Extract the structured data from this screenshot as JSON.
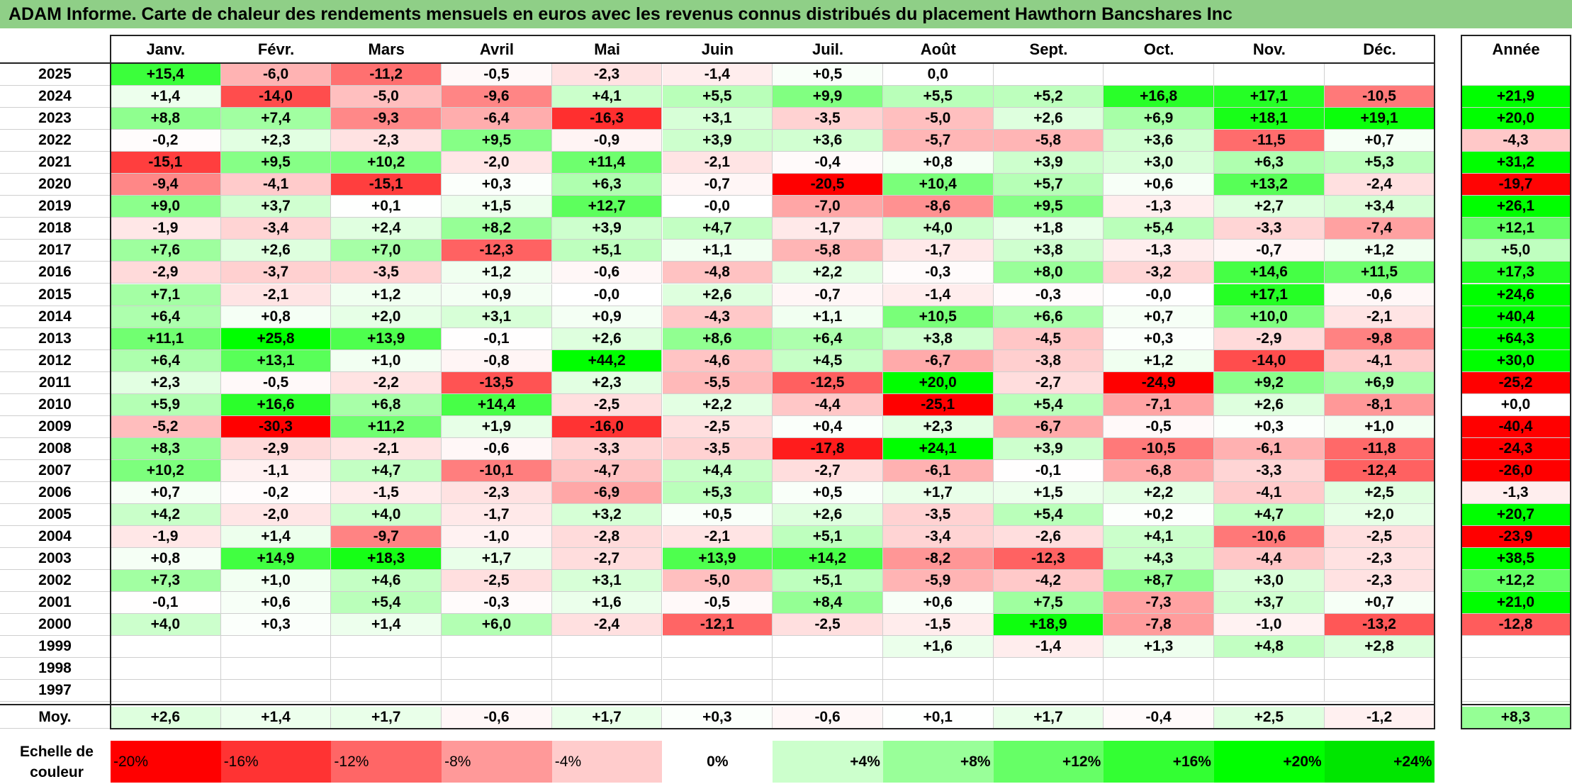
{
  "title": "ADAM Informe. Carte de chaleur des rendements mensuels en euros avec les revenus connus distribués du placement Hawthorn Bancshares Inc",
  "colors": {
    "title_bg": "#8fcf87",
    "neg_max": "#ff0000",
    "neutral": "#ffffff",
    "pos_max": "#00ff00"
  },
  "chart_data": {
    "type": "heatmap",
    "title": "ADAM Informe. Carte de chaleur des rendements mensuels en euros avec les revenus connus distribués du placement Hawthorn Bancshares Inc",
    "columns": [
      "Janv.",
      "Févr.",
      "Mars",
      "Avril",
      "Mai",
      "Juin",
      "Juil.",
      "Août",
      "Sept.",
      "Oct.",
      "Nov.",
      "Déc."
    ],
    "year_column": "Année",
    "rows": [
      {
        "year": "2025",
        "values": [
          "+15,4",
          "-6,0",
          "-11,2",
          "-0,5",
          "-2,3",
          "-1,4",
          "+0,5",
          "0,0",
          "",
          "",
          "",
          ""
        ],
        "annual": ""
      },
      {
        "year": "2024",
        "values": [
          "+1,4",
          "-14,0",
          "-5,0",
          "-9,6",
          "+4,1",
          "+5,5",
          "+9,9",
          "+5,5",
          "+5,2",
          "+16,8",
          "+17,1",
          "-10,5"
        ],
        "annual": "+21,9"
      },
      {
        "year": "2023",
        "values": [
          "+8,8",
          "+7,4",
          "-9,3",
          "-6,4",
          "-16,3",
          "+3,1",
          "-3,5",
          "-5,0",
          "+2,6",
          "+6,9",
          "+18,1",
          "+19,1"
        ],
        "annual": "+20,0"
      },
      {
        "year": "2022",
        "values": [
          "-0,2",
          "+2,3",
          "-2,3",
          "+9,5",
          "-0,9",
          "+3,9",
          "+3,6",
          "-5,7",
          "-5,8",
          "+3,6",
          "-11,5",
          "+0,7"
        ],
        "annual": "-4,3"
      },
      {
        "year": "2021",
        "values": [
          "-15,1",
          "+9,5",
          "+10,2",
          "-2,0",
          "+11,4",
          "-2,1",
          "-0,4",
          "+0,8",
          "+3,9",
          "+3,0",
          "+6,3",
          "+5,3"
        ],
        "annual": "+31,2"
      },
      {
        "year": "2020",
        "values": [
          "-9,4",
          "-4,1",
          "-15,1",
          "+0,3",
          "+6,3",
          "-0,7",
          "-20,5",
          "+10,4",
          "+5,7",
          "+0,6",
          "+13,2",
          "-2,4"
        ],
        "annual": "-19,7"
      },
      {
        "year": "2019",
        "values": [
          "+9,0",
          "+3,7",
          "+0,1",
          "+1,5",
          "+12,7",
          "-0,0",
          "-7,0",
          "-8,6",
          "+9,5",
          "-1,3",
          "+2,7",
          "+3,4"
        ],
        "annual": "+26,1"
      },
      {
        "year": "2018",
        "values": [
          "-1,9",
          "-3,4",
          "+2,4",
          "+8,2",
          "+3,9",
          "+4,7",
          "-1,7",
          "+4,0",
          "+1,8",
          "+5,4",
          "-3,3",
          "-7,4"
        ],
        "annual": "+12,1"
      },
      {
        "year": "2017",
        "values": [
          "+7,6",
          "+2,6",
          "+7,0",
          "-12,3",
          "+5,1",
          "+1,1",
          "-5,8",
          "-1,7",
          "+3,8",
          "-1,3",
          "-0,7",
          "+1,2"
        ],
        "annual": "+5,0"
      },
      {
        "year": "2016",
        "values": [
          "-2,9",
          "-3,7",
          "-3,5",
          "+1,2",
          "-0,6",
          "-4,8",
          "+2,2",
          "-0,3",
          "+8,0",
          "-3,2",
          "+14,6",
          "+11,5"
        ],
        "annual": "+17,3"
      },
      {
        "year": "2015",
        "values": [
          "+7,1",
          "-2,1",
          "+1,2",
          "+0,9",
          "-0,0",
          "+2,6",
          "-0,7",
          "-1,4",
          "-0,3",
          "-0,0",
          "+17,1",
          "-0,6"
        ],
        "annual": "+24,6"
      },
      {
        "year": "2014",
        "values": [
          "+6,4",
          "+0,8",
          "+2,0",
          "+3,1",
          "+0,9",
          "-4,3",
          "+1,1",
          "+10,5",
          "+6,6",
          "+0,7",
          "+10,0",
          "-2,1"
        ],
        "annual": "+40,4"
      },
      {
        "year": "2013",
        "values": [
          "+11,1",
          "+25,8",
          "+13,9",
          "-0,1",
          "+2,6",
          "+8,6",
          "+6,4",
          "+3,8",
          "-4,5",
          "+0,3",
          "-2,9",
          "-9,8"
        ],
        "annual": "+64,3"
      },
      {
        "year": "2012",
        "values": [
          "+6,4",
          "+13,1",
          "+1,0",
          "-0,8",
          "+44,2",
          "-4,6",
          "+4,5",
          "-6,7",
          "-3,8",
          "+1,2",
          "-14,0",
          "-4,1"
        ],
        "annual": "+30,0"
      },
      {
        "year": "2011",
        "values": [
          "+2,3",
          "-0,5",
          "-2,2",
          "-13,5",
          "+2,3",
          "-5,5",
          "-12,5",
          "+20,0",
          "-2,7",
          "-24,9",
          "+9,2",
          "+6,9"
        ],
        "annual": "-25,2"
      },
      {
        "year": "2010",
        "values": [
          "+5,9",
          "+16,6",
          "+6,8",
          "+14,4",
          "-2,5",
          "+2,2",
          "-4,4",
          "-25,1",
          "+5,4",
          "-7,1",
          "+2,6",
          "-8,1"
        ],
        "annual": "+0,0"
      },
      {
        "year": "2009",
        "values": [
          "-5,2",
          "-30,3",
          "+11,2",
          "+1,9",
          "-16,0",
          "-2,5",
          "+0,4",
          "+2,3",
          "-6,7",
          "-0,5",
          "+0,3",
          "+1,0"
        ],
        "annual": "-40,4"
      },
      {
        "year": "2008",
        "values": [
          "+8,3",
          "-2,9",
          "-2,1",
          "-0,6",
          "-3,3",
          "-3,5",
          "-17,8",
          "+24,1",
          "+3,9",
          "-10,5",
          "-6,1",
          "-11,8"
        ],
        "annual": "-24,3"
      },
      {
        "year": "2007",
        "values": [
          "+10,2",
          "-1,1",
          "+4,7",
          "-10,1",
          "-4,7",
          "+4,4",
          "-2,7",
          "-6,1",
          "-0,1",
          "-6,8",
          "-3,3",
          "-12,4"
        ],
        "annual": "-26,0"
      },
      {
        "year": "2006",
        "values": [
          "+0,7",
          "-0,2",
          "-1,5",
          "-2,3",
          "-6,9",
          "+5,3",
          "+0,5",
          "+1,7",
          "+1,5",
          "+2,2",
          "-4,1",
          "+2,5"
        ],
        "annual": "-1,3"
      },
      {
        "year": "2005",
        "values": [
          "+4,2",
          "-2,0",
          "+4,0",
          "-1,7",
          "+3,2",
          "+0,5",
          "+2,6",
          "-3,5",
          "+5,4",
          "+0,2",
          "+4,7",
          "+2,0"
        ],
        "annual": "+20,7"
      },
      {
        "year": "2004",
        "values": [
          "-1,9",
          "+1,4",
          "-9,7",
          "-1,0",
          "-2,8",
          "-2,1",
          "+5,1",
          "-3,4",
          "-2,6",
          "+4,1",
          "-10,6",
          "-2,5"
        ],
        "annual": "-23,9"
      },
      {
        "year": "2003",
        "values": [
          "+0,8",
          "+14,9",
          "+18,3",
          "+1,7",
          "-2,7",
          "+13,9",
          "+14,2",
          "-8,2",
          "-12,3",
          "+4,3",
          "-4,4",
          "-2,3"
        ],
        "annual": "+38,5"
      },
      {
        "year": "2002",
        "values": [
          "+7,3",
          "+1,0",
          "+4,6",
          "-2,5",
          "+3,1",
          "-5,0",
          "+5,1",
          "-5,9",
          "-4,2",
          "+8,7",
          "+3,0",
          "-2,3"
        ],
        "annual": "+12,2"
      },
      {
        "year": "2001",
        "values": [
          "-0,1",
          "+0,6",
          "+5,4",
          "-0,3",
          "+1,6",
          "-0,5",
          "+8,4",
          "+0,6",
          "+7,5",
          "-7,3",
          "+3,7",
          "+0,7"
        ],
        "annual": "+21,0"
      },
      {
        "year": "2000",
        "values": [
          "+4,0",
          "+0,3",
          "+1,4",
          "+6,0",
          "-2,4",
          "-12,1",
          "-2,5",
          "-1,5",
          "+18,9",
          "-7,8",
          "-1,0",
          "-13,2"
        ],
        "annual": "-12,8"
      },
      {
        "year": "1999",
        "values": [
          "",
          "",
          "",
          "",
          "",
          "",
          "",
          "+1,6",
          "-1,4",
          "+1,3",
          "+4,8",
          "+2,8"
        ],
        "annual": ""
      },
      {
        "year": "1998",
        "values": [
          "",
          "",
          "",
          "",
          "",
          "",
          "",
          "",
          "",
          "",
          "",
          ""
        ],
        "annual": ""
      },
      {
        "year": "1997",
        "values": [
          "",
          "",
          "",
          "",
          "",
          "",
          "",
          "",
          "",
          "",
          "",
          ""
        ],
        "annual": ""
      }
    ],
    "average": {
      "label": "Moy.",
      "values": [
        "+2,6",
        "+1,4",
        "+1,7",
        "-0,6",
        "+1,7",
        "+0,3",
        "-0,6",
        "+0,1",
        "+1,7",
        "-0,4",
        "+2,5",
        "-1,2"
      ],
      "annual": "+8,3"
    },
    "color_scale": {
      "label": "Echelle de couleur",
      "stops": [
        {
          "label": "-20%",
          "value": -20,
          "color": "#ff0000"
        },
        {
          "label": "-16%",
          "value": -16,
          "color": "#ff3333"
        },
        {
          "label": "-12%",
          "value": -12,
          "color": "#ff6666"
        },
        {
          "label": "-8%",
          "value": -8,
          "color": "#ff9999"
        },
        {
          "label": "-4%",
          "value": -4,
          "color": "#ffcccc"
        },
        {
          "label": "0%",
          "value": 0,
          "color": "#ffffff"
        },
        {
          "label": "+4%",
          "value": 4,
          "color": "#ccffcc"
        },
        {
          "label": "+8%",
          "value": 8,
          "color": "#99ff99"
        },
        {
          "label": "+12%",
          "value": 12,
          "color": "#66ff66"
        },
        {
          "label": "+16%",
          "value": 16,
          "color": "#33ff33"
        },
        {
          "label": "+20%",
          "value": 20,
          "color": "#00ff00"
        },
        {
          "label": "+24%",
          "value": 24,
          "color": "#00e600"
        }
      ]
    }
  }
}
